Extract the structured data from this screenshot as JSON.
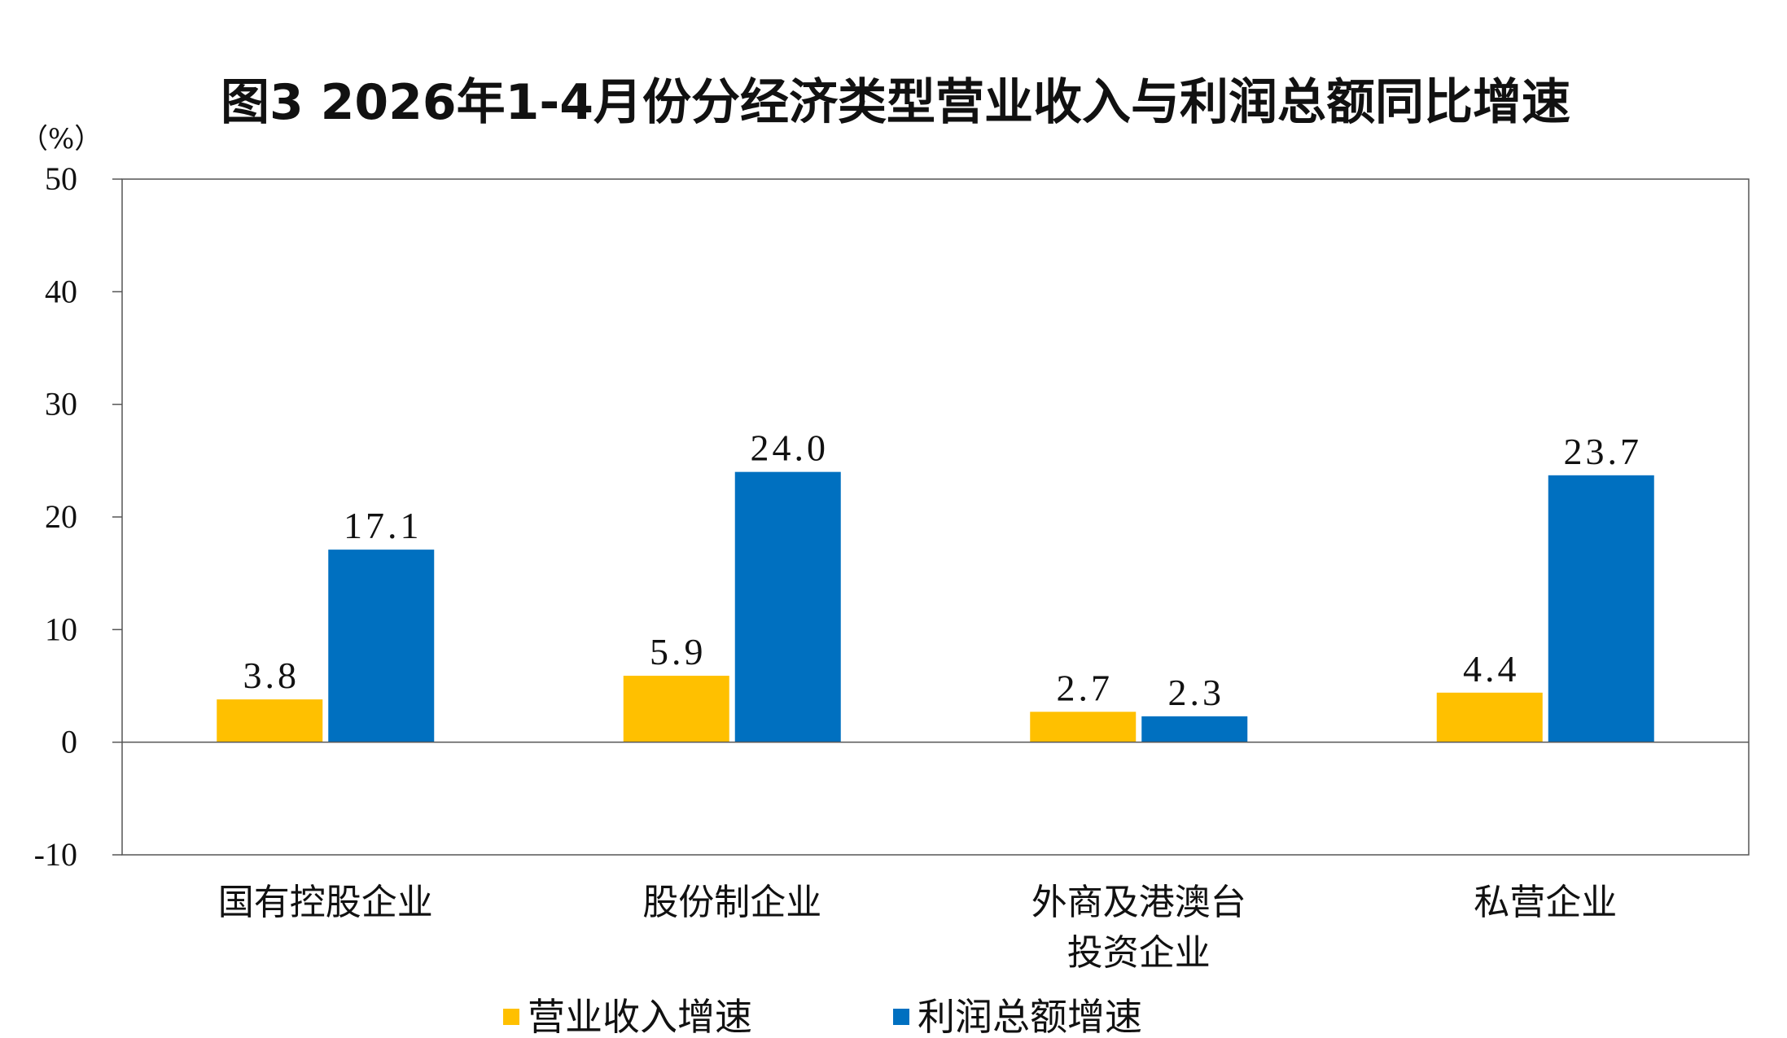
{
  "colors": {
    "revenue": "#FFC000",
    "profit": "#0070C0",
    "axis": "#555555",
    "text": "#111111"
  },
  "chart_data": {
    "type": "bar",
    "title": "图3 2026年1-4月份分经济类型营业收入与利润总额同比增速",
    "ylabel": "（%）",
    "ylim": [
      -10,
      50
    ],
    "yticks": [
      50,
      40,
      30,
      20,
      10,
      0,
      -10
    ],
    "grid": false,
    "legend_position": "bottom",
    "categories": [
      [
        "国有控股企业"
      ],
      [
        "股份制企业"
      ],
      [
        "外商及港澳台",
        "投资企业"
      ],
      [
        "私营企业"
      ]
    ],
    "series": [
      {
        "name": "营业收入增速",
        "values": [
          3.8,
          5.9,
          2.7,
          4.4
        ],
        "labels": [
          "3.8",
          "5.9",
          "2.7",
          "4.4"
        ]
      },
      {
        "name": "利润总额增速",
        "values": [
          17.1,
          24.0,
          2.3,
          23.7
        ],
        "labels": [
          "17.1",
          "24.0",
          "2.3",
          "23.7"
        ]
      }
    ]
  }
}
